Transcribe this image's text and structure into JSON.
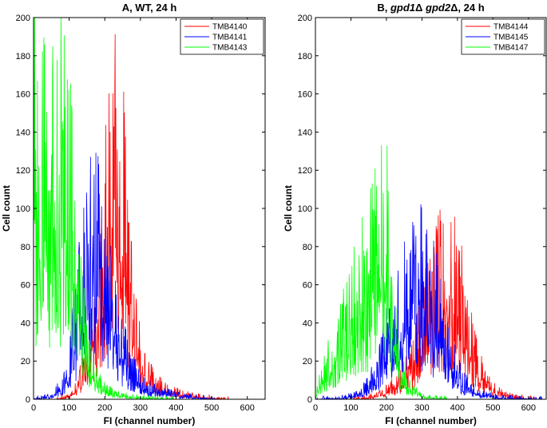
{
  "chart_data": [
    {
      "type": "line",
      "title": "A, WT, 24 h",
      "xlabel": "FI (channel number)",
      "ylabel": "Cell count",
      "xlim": [
        0,
        650
      ],
      "ylim": [
        0,
        200
      ],
      "xticks": [
        0,
        100,
        200,
        300,
        400,
        500,
        600
      ],
      "yticks": [
        0,
        20,
        40,
        60,
        80,
        100,
        120,
        140,
        160,
        180,
        200
      ],
      "legend_position": "top-right",
      "series": [
        {
          "name": "TMB4140",
          "color": "#ff0000",
          "x": [
            0,
            60,
            100,
            120,
            140,
            160,
            175,
            190,
            200,
            210,
            220,
            230,
            240,
            250,
            260,
            270,
            280,
            300,
            320,
            350,
            400,
            450,
            500,
            550,
            650
          ],
          "y": [
            0,
            0,
            2,
            6,
            16,
            32,
            55,
            78,
            92,
            106,
            118,
            124,
            122,
            112,
            92,
            68,
            45,
            24,
            14,
            8,
            4,
            2,
            1,
            0,
            0
          ]
        },
        {
          "name": "TMB4141",
          "color": "#0000ff",
          "x": [
            0,
            50,
            80,
            100,
            120,
            140,
            160,
            170,
            180,
            190,
            200,
            215,
            230,
            250,
            270,
            300,
            330,
            370,
            420,
            470,
            520,
            650
          ],
          "y": [
            0,
            2,
            8,
            20,
            42,
            70,
            85,
            90,
            88,
            82,
            74,
            62,
            45,
            30,
            18,
            10,
            6,
            4,
            2,
            1,
            0,
            0
          ]
        },
        {
          "name": "TMB4143",
          "color": "#00ff00",
          "x": [
            0,
            10,
            20,
            30,
            40,
            50,
            60,
            70,
            80,
            90,
            100,
            110,
            120,
            130,
            140,
            150,
            160,
            170,
            180,
            200,
            220,
            260,
            300,
            400,
            650
          ],
          "y": [
            170,
            120,
            122,
            128,
            132,
            135,
            136,
            134,
            130,
            124,
            114,
            100,
            82,
            62,
            42,
            28,
            20,
            15,
            10,
            6,
            4,
            2,
            1,
            0,
            0
          ]
        }
      ]
    },
    {
      "type": "line",
      "title": "B,  gpd1Δ gpd2Δ, 24 h",
      "xlabel": "FI (channel number)",
      "ylabel": "Cell count",
      "xlim": [
        0,
        650
      ],
      "ylim": [
        0,
        200
      ],
      "xticks": [
        0,
        100,
        200,
        300,
        400,
        500,
        600
      ],
      "yticks": [
        0,
        20,
        40,
        60,
        80,
        100,
        120,
        140,
        160,
        180,
        200
      ],
      "legend_position": "top-right",
      "series": [
        {
          "name": "TMB4144",
          "color": "#ff0000",
          "x": [
            0,
            100,
            150,
            180,
            200,
            230,
            250,
            270,
            290,
            310,
            330,
            350,
            365,
            380,
            400,
            420,
            440,
            460,
            480,
            500,
            530,
            570,
            620,
            650
          ],
          "y": [
            0,
            0,
            1,
            3,
            5,
            9,
            13,
            20,
            32,
            46,
            60,
            70,
            74,
            72,
            62,
            46,
            30,
            18,
            10,
            6,
            3,
            1,
            0,
            0
          ]
        },
        {
          "name": "TMB4145",
          "color": "#0000ff",
          "x": [
            0,
            80,
            120,
            150,
            170,
            190,
            210,
            230,
            250,
            270,
            290,
            300,
            310,
            320,
            340,
            360,
            380,
            400,
            430,
            470,
            520,
            650
          ],
          "y": [
            0,
            1,
            3,
            8,
            16,
            26,
            38,
            48,
            55,
            62,
            70,
            72,
            70,
            65,
            52,
            38,
            26,
            15,
            7,
            3,
            1,
            0
          ]
        },
        {
          "name": "TMB4147",
          "color": "#00ff00",
          "x": [
            0,
            10,
            30,
            50,
            70,
            90,
            110,
            130,
            150,
            170,
            180,
            190,
            200,
            210,
            220,
            230,
            250,
            270,
            300,
            330,
            380,
            650
          ],
          "y": [
            0,
            10,
            18,
            26,
            34,
            44,
            54,
            64,
            70,
            84,
            95,
            108,
            96,
            68,
            44,
            26,
            12,
            6,
            2,
            1,
            0,
            0
          ]
        }
      ]
    }
  ]
}
